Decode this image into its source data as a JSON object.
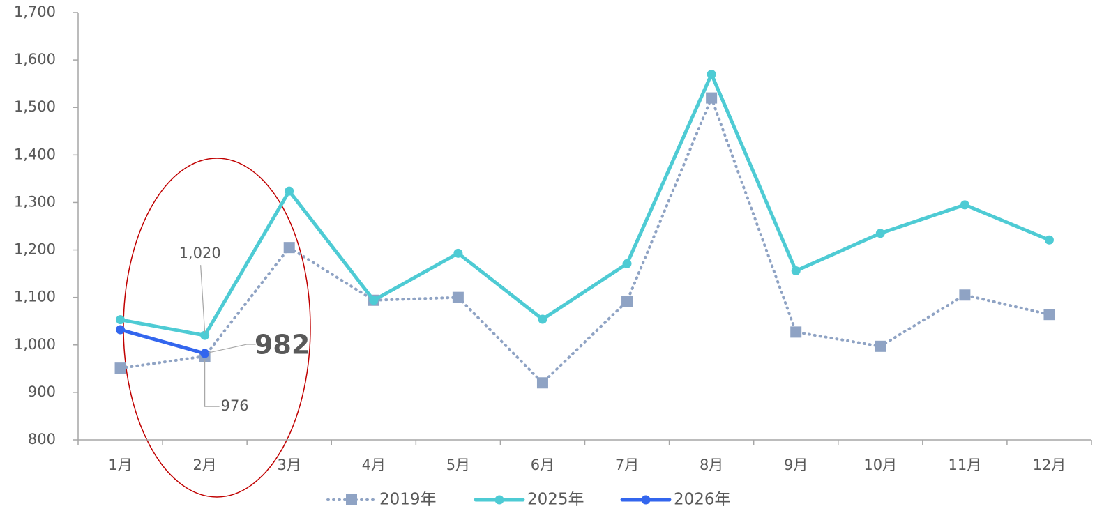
{
  "chart_data": {
    "type": "line",
    "categories": [
      "1月",
      "2月",
      "3月",
      "4月",
      "5月",
      "6月",
      "7月",
      "8月",
      "9月",
      "10月",
      "11月",
      "12月"
    ],
    "series": [
      {
        "name": "2019年",
        "color": "#8fa3c4",
        "style": "dotted",
        "marker": "square",
        "values": [
          951,
          976,
          1205,
          1094,
          1100,
          920,
          1092,
          1520,
          1027,
          997,
          1105,
          1064
        ],
        "value_labels": [
          null,
          "976",
          null,
          null,
          null,
          null,
          null,
          null,
          null,
          null,
          null,
          null
        ]
      },
      {
        "name": "2025年",
        "color": "#4ecbd4",
        "style": "solid",
        "marker": "circle",
        "values": [
          1053,
          1020,
          1324,
          1094,
          1193,
          1054,
          1171,
          1570,
          1156,
          1235,
          1295,
          1221
        ],
        "value_labels": [
          null,
          "1,020",
          null,
          null,
          null,
          null,
          null,
          null,
          null,
          null,
          null,
          null
        ]
      },
      {
        "name": "2026年",
        "color": "#3366ee",
        "style": "solid",
        "marker": "circle",
        "values": [
          1032,
          982,
          null,
          null,
          null,
          null,
          null,
          null,
          null,
          null,
          null,
          null
        ],
        "value_labels": [
          null,
          "982",
          null,
          null,
          null,
          null,
          null,
          null,
          null,
          null,
          null,
          null
        ]
      }
    ],
    "ylim": [
      800,
      1700
    ],
    "yticks": [
      800,
      900,
      {
        "value": 1000,
        "label": "1,000"
      },
      {
        "value": 1100,
        "label": "1,100"
      },
      {
        "value": 1200,
        "label": "1,200"
      },
      {
        "value": 1300,
        "label": "1,300"
      },
      {
        "value": 1400,
        "label": "1,400"
      },
      {
        "value": 1500,
        "label": "1,500"
      },
      {
        "value": 1600,
        "label": "1,600"
      },
      {
        "value": 1700,
        "label": "1,700"
      }
    ],
    "grid": false,
    "legend": "bottom"
  }
}
